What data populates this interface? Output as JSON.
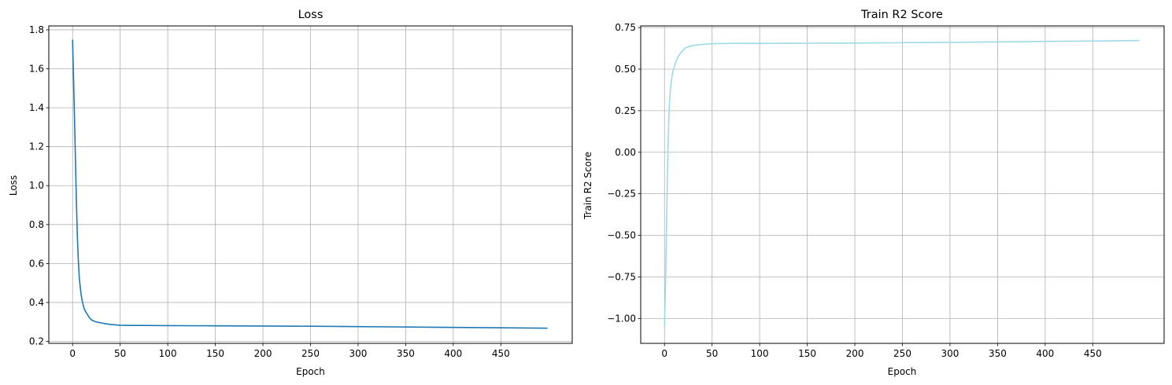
{
  "chart_data": [
    {
      "type": "line",
      "title": "Loss",
      "xlabel": "Epoch",
      "ylabel": "Loss",
      "xlim": [
        -25,
        525
      ],
      "ylim": [
        0.19,
        1.82
      ],
      "xticks": [
        0,
        50,
        100,
        150,
        200,
        250,
        300,
        350,
        400,
        450
      ],
      "xtick_labels": [
        "0",
        "50",
        "100",
        "150",
        "200",
        "250",
        "300",
        "350",
        "400",
        "450"
      ],
      "yticks": [
        0.2,
        0.4,
        0.6,
        0.8,
        1.0,
        1.2,
        1.4,
        1.6,
        1.8
      ],
      "ytick_labels": [
        "0.2",
        "0.4",
        "0.6",
        "0.8",
        "1.0",
        "1.2",
        "1.4",
        "1.6",
        "1.8"
      ],
      "grid": true,
      "series": [
        {
          "color": "#1f77b4",
          "x": [
            0,
            1,
            2,
            3,
            4,
            5,
            6,
            7,
            8,
            9,
            10,
            12,
            14,
            16,
            18,
            20,
            22,
            25,
            30,
            35,
            40,
            45,
            50,
            60,
            75,
            100,
            150,
            200,
            250,
            300,
            350,
            400,
            450,
            499
          ],
          "y": [
            1.75,
            1.55,
            1.35,
            1.13,
            0.92,
            0.74,
            0.62,
            0.53,
            0.48,
            0.44,
            0.41,
            0.37,
            0.35,
            0.335,
            0.32,
            0.31,
            0.305,
            0.3,
            0.295,
            0.29,
            0.287,
            0.285,
            0.283,
            0.282,
            0.282,
            0.281,
            0.28,
            0.279,
            0.278,
            0.276,
            0.274,
            0.272,
            0.27,
            0.268
          ]
        }
      ]
    },
    {
      "type": "line",
      "title": "Train R2 Score",
      "xlabel": "Epoch",
      "ylabel": "Train R2 Score",
      "xlim": [
        -25,
        525
      ],
      "ylim": [
        -1.15,
        0.76
      ],
      "xticks": [
        0,
        50,
        100,
        150,
        200,
        250,
        300,
        350,
        400,
        450
      ],
      "xtick_labels": [
        "0",
        "50",
        "100",
        "150",
        "200",
        "250",
        "300",
        "350",
        "400",
        "450"
      ],
      "yticks": [
        -1.0,
        -0.75,
        -0.5,
        -0.25,
        0.0,
        0.25,
        0.5,
        0.75
      ],
      "ytick_labels": [
        "−1.00",
        "−0.75",
        "−0.50",
        "−0.25",
        "0.00",
        "0.25",
        "0.50",
        "0.75"
      ],
      "grid": true,
      "series": [
        {
          "color": "#9edae5",
          "x": [
            0,
            1,
            2,
            3,
            4,
            5,
            6,
            7,
            8,
            9,
            10,
            12,
            14,
            16,
            18,
            20,
            22,
            25,
            30,
            35,
            40,
            45,
            50,
            60,
            75,
            100,
            150,
            200,
            250,
            300,
            350,
            400,
            450,
            499
          ],
          "y": [
            -1.05,
            -0.8,
            -0.5,
            -0.15,
            0.1,
            0.27,
            0.36,
            0.42,
            0.46,
            0.49,
            0.51,
            0.545,
            0.57,
            0.59,
            0.605,
            0.617,
            0.627,
            0.635,
            0.642,
            0.646,
            0.649,
            0.651,
            0.653,
            0.654,
            0.655,
            0.655,
            0.656,
            0.657,
            0.659,
            0.661,
            0.664,
            0.667,
            0.669,
            0.672
          ]
        }
      ]
    }
  ]
}
